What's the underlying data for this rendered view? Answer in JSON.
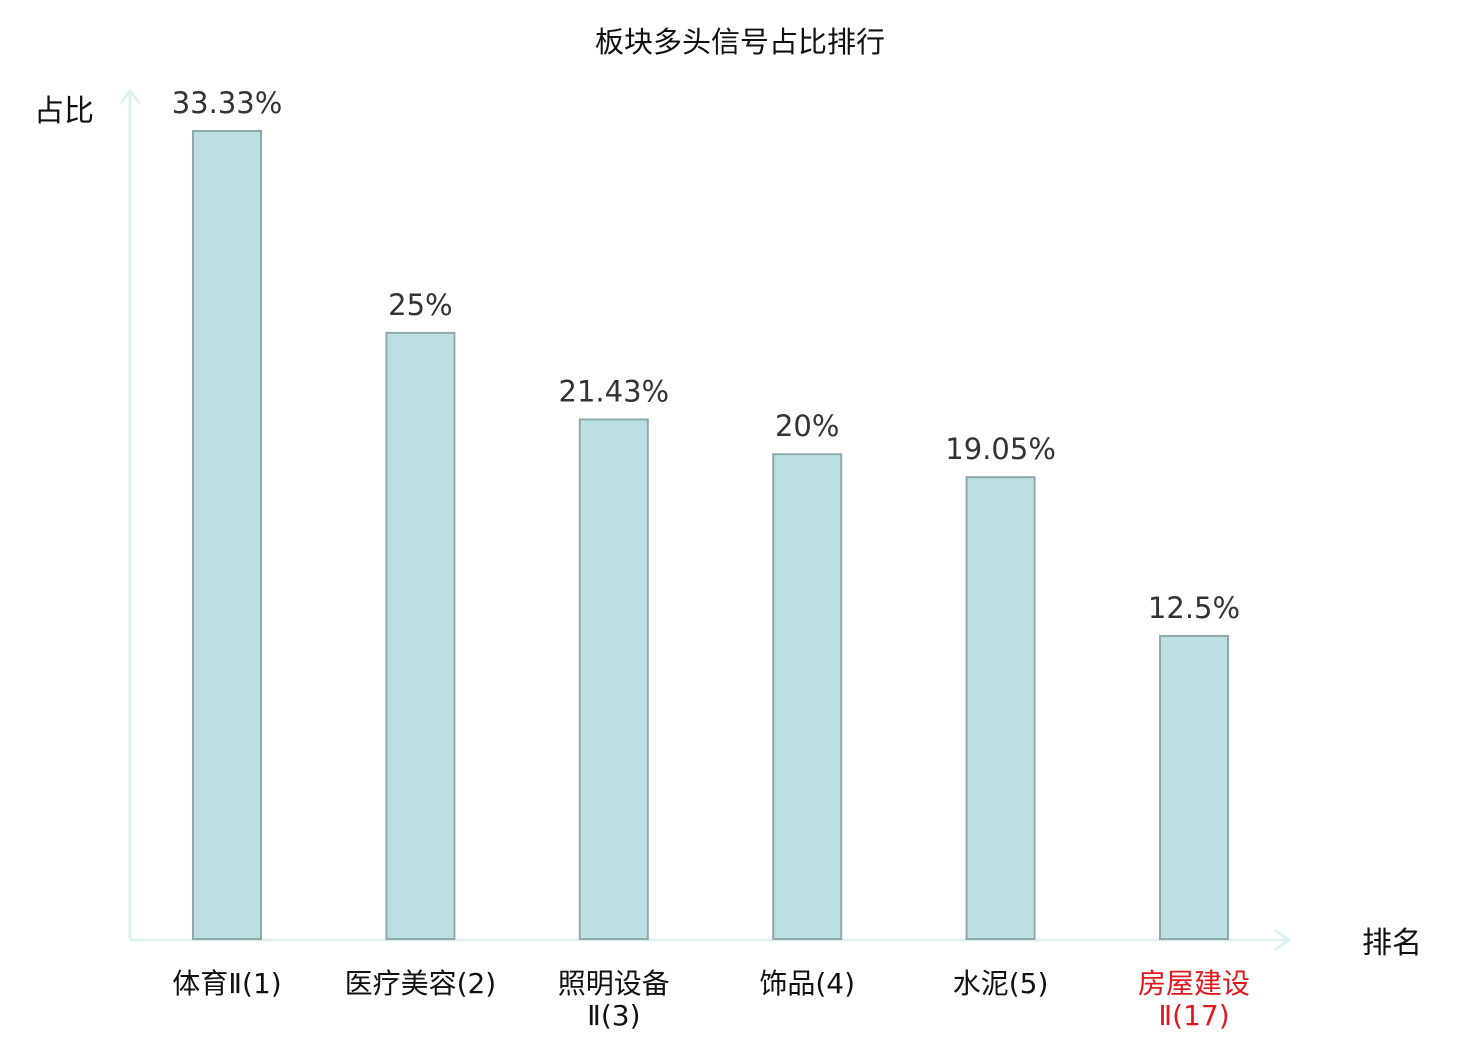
{
  "chart_data": {
    "type": "bar",
    "title": "板块多头信号占比排行",
    "ylabel": "占比",
    "xlabel": "排名",
    "ylim": [
      0,
      35
    ],
    "grid": false,
    "categories": [
      {
        "name": "体育Ⅱ",
        "rank": "(1)",
        "lines": [
          "体育Ⅱ(1)"
        ],
        "highlight": false
      },
      {
        "name": "医疗美容",
        "rank": "(2)",
        "lines": [
          "医疗美容(2)"
        ],
        "highlight": false
      },
      {
        "name": "照明设备Ⅱ",
        "rank": "(3)",
        "lines": [
          "照明设备",
          "Ⅱ(3)"
        ],
        "highlight": false
      },
      {
        "name": "饰品",
        "rank": "(4)",
        "lines": [
          "饰品(4)"
        ],
        "highlight": false
      },
      {
        "name": "水泥",
        "rank": "(5)",
        "lines": [
          "水泥(5)"
        ],
        "highlight": false
      },
      {
        "name": "房屋建设Ⅱ",
        "rank": "(17)",
        "lines": [
          "房屋建设",
          "Ⅱ(17)"
        ],
        "highlight": true
      }
    ],
    "values": [
      33.33,
      25,
      21.43,
      20,
      19.05,
      12.5
    ],
    "value_labels": [
      "33.33%",
      "25%",
      "21.43%",
      "20%",
      "19.05%",
      "12.5%"
    ]
  },
  "colors": {
    "bar_fill": "#bce0e2",
    "bar_stroke": "#8fa9ab",
    "axis": "#dff2ef",
    "text": "#111111",
    "highlight": "#e0191f"
  }
}
